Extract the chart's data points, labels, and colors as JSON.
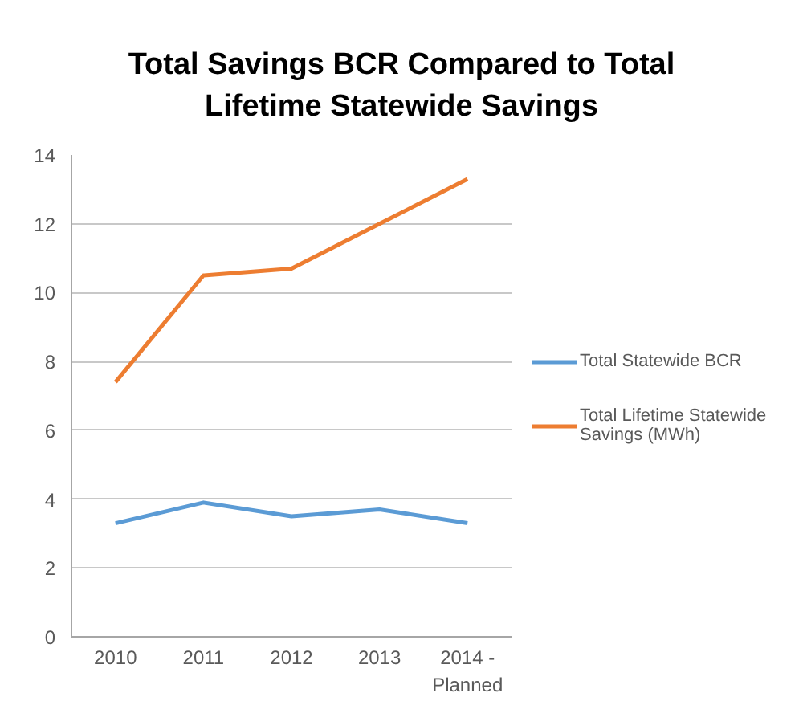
{
  "chart_data": {
    "type": "line",
    "title": "Total Savings BCR Compared to Total Lifetime Statewide Savings",
    "categories": [
      "2010",
      "2011",
      "2012",
      "2013",
      "2014 - Planned"
    ],
    "series": [
      {
        "name": "Total Statewide BCR",
        "color": "#5b9bd5",
        "values": [
          3.3,
          3.9,
          3.5,
          3.7,
          3.3
        ]
      },
      {
        "name": "Total Lifetime Statewide Savings (MWh)",
        "color": "#ed7d31",
        "values": [
          7.4,
          10.5,
          10.7,
          12.0,
          13.3
        ]
      }
    ],
    "ylim": [
      0,
      14
    ],
    "yticks": [
      0,
      2,
      4,
      6,
      8,
      10,
      12,
      14
    ],
    "grid": "y",
    "legend": "right",
    "line_style": "solid"
  }
}
